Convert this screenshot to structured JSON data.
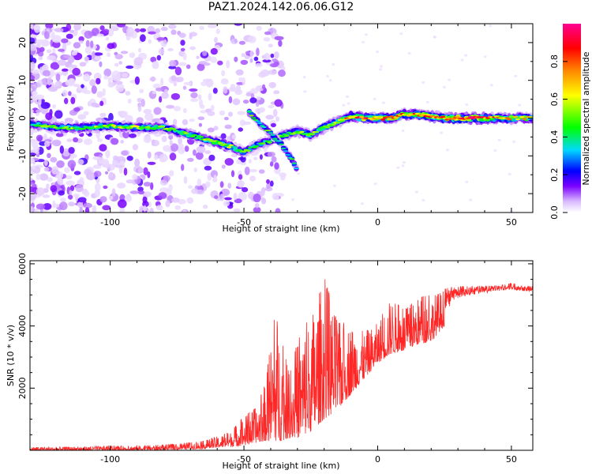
{
  "title": "PAZ1.2024.142.06.06.G12",
  "chart_data": [
    {
      "type": "heatmap",
      "xlabel": "Height of straight line (km)",
      "ylabel": "Frequency (Hz)",
      "xlim": [
        -130,
        58
      ],
      "ylim": [
        -25,
        25
      ],
      "x_ticks": [
        "-100",
        "-50",
        "0",
        "50"
      ],
      "x_tick_values": [
        -100,
        -50,
        0,
        50
      ],
      "y_ticks": [
        "-20",
        "-10",
        "0",
        "10",
        "20"
      ],
      "y_tick_values": [
        -20,
        -10,
        0,
        10,
        20
      ],
      "grid": false,
      "colorbar": {
        "label": "Normalized spectral amplitude",
        "range": [
          0.0,
          1.0
        ],
        "ticks": [
          "0.0",
          "0.2",
          "0.4",
          "0.6",
          "0.8"
        ],
        "tick_values": [
          0.0,
          0.2,
          0.4,
          0.6,
          0.8
        ],
        "colormap": [
          "#ffffff",
          "#d8b8ff",
          "#7b00ff",
          "#0000ff",
          "#00d8ff",
          "#00ff00",
          "#ffff00",
          "#ff8800",
          "#ff0000",
          "#ff0090"
        ]
      },
      "ridge": [
        {
          "x": -130,
          "y": -1.5,
          "a": 0.45
        },
        {
          "x": -120,
          "y": -2.5,
          "a": 0.5
        },
        {
          "x": -110,
          "y": -2.5,
          "a": 0.5
        },
        {
          "x": -100,
          "y": -2.0,
          "a": 0.55
        },
        {
          "x": -90,
          "y": -2.5,
          "a": 0.55
        },
        {
          "x": -80,
          "y": -2.5,
          "a": 0.5
        },
        {
          "x": -75,
          "y": -3.5,
          "a": 0.45
        },
        {
          "x": -70,
          "y": -4.5,
          "a": 0.5
        },
        {
          "x": -65,
          "y": -5.5,
          "a": 0.5
        },
        {
          "x": -60,
          "y": -6.5,
          "a": 0.55
        },
        {
          "x": -55,
          "y": -7.5,
          "a": 0.5
        },
        {
          "x": -50,
          "y": -9.0,
          "a": 0.45
        },
        {
          "x": -45,
          "y": -7.0,
          "a": 0.4
        },
        {
          "x": -40,
          "y": -6.0,
          "a": 0.45
        },
        {
          "x": -35,
          "y": -4.5,
          "a": 0.5
        },
        {
          "x": -30,
          "y": -3.5,
          "a": 0.55
        },
        {
          "x": -25,
          "y": -4.5,
          "a": 0.5
        },
        {
          "x": -20,
          "y": -2.5,
          "a": 0.55
        },
        {
          "x": -15,
          "y": -1.0,
          "a": 0.6
        },
        {
          "x": -10,
          "y": 0.5,
          "a": 0.7
        },
        {
          "x": -5,
          "y": 0.0,
          "a": 0.85
        },
        {
          "x": 0,
          "y": 0.0,
          "a": 0.75
        },
        {
          "x": 5,
          "y": 0.0,
          "a": 0.8
        },
        {
          "x": 10,
          "y": 1.0,
          "a": 0.7
        },
        {
          "x": 15,
          "y": 1.0,
          "a": 0.75
        },
        {
          "x": 20,
          "y": 0.5,
          "a": 0.8
        },
        {
          "x": 25,
          "y": 0.0,
          "a": 0.75
        },
        {
          "x": 30,
          "y": 0.0,
          "a": 0.9
        },
        {
          "x": 35,
          "y": 0.0,
          "a": 0.9
        },
        {
          "x": 40,
          "y": 0.0,
          "a": 0.85
        },
        {
          "x": 45,
          "y": 0.0,
          "a": 0.7
        },
        {
          "x": 50,
          "y": 0.0,
          "a": 0.65
        },
        {
          "x": 58,
          "y": 0.0,
          "a": 0.6
        }
      ],
      "branch": [
        {
          "x": -48,
          "y": 1.5,
          "a": 0.45
        },
        {
          "x": -44,
          "y": -1.5,
          "a": 0.4
        },
        {
          "x": -40,
          "y": -4.0,
          "a": 0.45
        },
        {
          "x": -36,
          "y": -7.0,
          "a": 0.4
        },
        {
          "x": -32,
          "y": -11.0,
          "a": 0.4
        },
        {
          "x": -30,
          "y": -14.0,
          "a": 0.35
        }
      ]
    },
    {
      "type": "line",
      "xlabel": "Height of straight line (km)",
      "ylabel": "SNR (10 * v/v)",
      "xlim": [
        -130,
        58
      ],
      "ylim": [
        0,
        6100
      ],
      "x_ticks": [
        "-100",
        "-50",
        "0",
        "50"
      ],
      "x_tick_values": [
        -100,
        -50,
        0,
        50
      ],
      "y_ticks": [
        "2000",
        "4000",
        "6000"
      ],
      "y_tick_values": [
        2000,
        4000,
        6000
      ],
      "grid": false,
      "series": [
        {
          "color": "#ff0000",
          "envelope": {
            "x": [
              -130,
              -110,
              -90,
              -75,
              -65,
              -60,
              -55,
              -50,
              -45,
              -42,
              -38,
              -36,
              -33,
              -30,
              -25,
              -20,
              -15,
              -10,
              -5,
              0,
              5,
              10,
              15,
              20,
              25,
              30,
              35,
              40,
              45,
              50,
              55,
              58
            ],
            "low": [
              0,
              0,
              0,
              20,
              50,
              80,
              120,
              150,
              250,
              300,
              300,
              300,
              400,
              400,
              600,
              1000,
              1300,
              1800,
              2300,
              2800,
              3100,
              3200,
              3400,
              3500,
              4000,
              4600,
              4800,
              4900,
              5000,
              5000,
              5000,
              5000
            ],
            "high": [
              100,
              120,
              150,
              200,
              300,
              450,
              600,
              1100,
              1400,
              2200,
              4600,
              3600,
              2400,
              3500,
              4400,
              5600,
              4100,
              4100,
              3800,
              4100,
              4900,
              4500,
              4900,
              5000,
              5200,
              5300,
              5300,
              5300,
              5300,
              5400,
              5300,
              5300
            ]
          }
        }
      ]
    }
  ]
}
